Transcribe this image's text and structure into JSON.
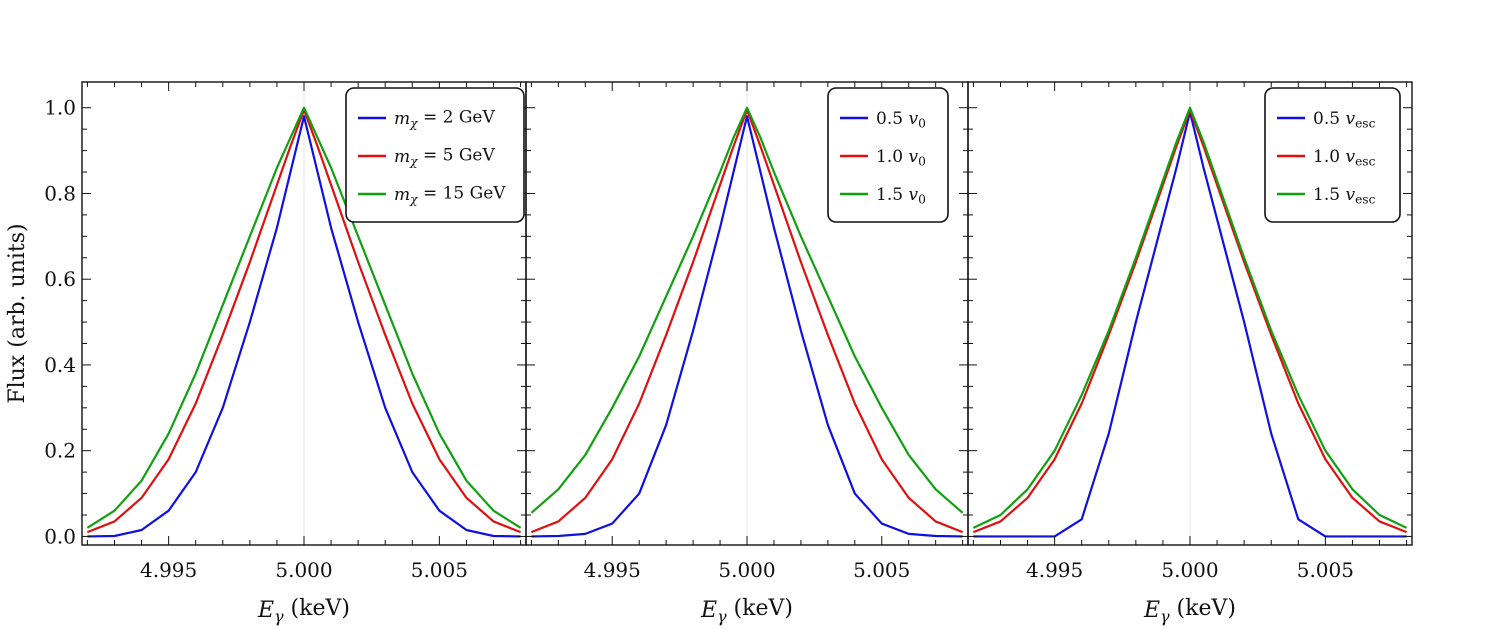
{
  "chart_data": [
    {
      "type": "line",
      "panel": "mass",
      "xlabel_sym": "E",
      "xlabel_sub": "γ",
      "xlabel_unit": " (keV)",
      "ylabel": "Flux (arb. units)",
      "xlim": [
        4.9918,
        5.0082
      ],
      "ylim": [
        -0.02,
        1.06
      ],
      "xticks": [
        "4.995",
        "5.000",
        "5.005"
      ],
      "xtick_values": [
        4.995,
        5.0,
        5.005
      ],
      "yticks": [
        "0.0",
        "0.2",
        "0.4",
        "0.6",
        "0.8",
        "1.0"
      ],
      "ytick_values": [
        0.0,
        0.2,
        0.4,
        0.6,
        0.8,
        1.0
      ],
      "legend_position": "top-right",
      "series": [
        {
          "name": "m_χ = 2 GeV",
          "sym": "m",
          "sub": "χ",
          "rest": " = 2 GeV",
          "color": "#1010e0",
          "x": [
            4.992,
            4.993,
            4.994,
            4.995,
            4.996,
            4.997,
            4.998,
            4.999,
            4.9995,
            5.0,
            5.0005,
            5.001,
            5.002,
            5.003,
            5.004,
            5.005,
            5.006,
            5.007,
            5.008
          ],
          "y": [
            0.0,
            0.001,
            0.015,
            0.06,
            0.15,
            0.3,
            0.5,
            0.72,
            0.85,
            0.98,
            0.85,
            0.72,
            0.5,
            0.3,
            0.15,
            0.06,
            0.015,
            0.001,
            0.0
          ]
        },
        {
          "name": "m_χ = 5 GeV",
          "sym": "m",
          "sub": "χ",
          "rest": " = 5 GeV",
          "color": "#e01010",
          "x": [
            4.992,
            4.993,
            4.994,
            4.995,
            4.996,
            4.997,
            4.998,
            4.999,
            4.9995,
            5.0,
            5.0005,
            5.001,
            5.002,
            5.003,
            5.004,
            5.005,
            5.006,
            5.007,
            5.008
          ],
          "y": [
            0.01,
            0.035,
            0.09,
            0.18,
            0.31,
            0.47,
            0.64,
            0.82,
            0.91,
            0.995,
            0.91,
            0.82,
            0.64,
            0.47,
            0.31,
            0.18,
            0.09,
            0.035,
            0.01
          ]
        },
        {
          "name": "m_χ = 15 GeV",
          "sym": "m",
          "sub": "χ",
          "rest": " = 15 GeV",
          "color": "#10a010",
          "x": [
            4.992,
            4.993,
            4.994,
            4.995,
            4.996,
            4.997,
            4.998,
            4.999,
            4.9995,
            5.0,
            5.0005,
            5.001,
            5.002,
            5.003,
            5.004,
            5.005,
            5.006,
            5.007,
            5.008
          ],
          "y": [
            0.02,
            0.06,
            0.13,
            0.24,
            0.38,
            0.54,
            0.7,
            0.86,
            0.93,
            1.0,
            0.93,
            0.86,
            0.7,
            0.54,
            0.38,
            0.24,
            0.13,
            0.06,
            0.02
          ]
        }
      ]
    },
    {
      "type": "line",
      "panel": "v0",
      "xlabel_sym": "E",
      "xlabel_sub": "γ",
      "xlabel_unit": " (keV)",
      "xlim": [
        4.9918,
        5.0082
      ],
      "ylim": [
        -0.02,
        1.06
      ],
      "xticks": [
        "4.995",
        "5.000",
        "5.005"
      ],
      "xtick_values": [
        4.995,
        5.0,
        5.005
      ],
      "legend_position": "top-right",
      "series": [
        {
          "name": "0.5 v_0",
          "sym": "0.5 ",
          "var": "v",
          "sub": "0",
          "color": "#1010e0",
          "x": [
            4.992,
            4.993,
            4.994,
            4.995,
            4.996,
            4.997,
            4.998,
            4.999,
            4.9995,
            5.0,
            5.0005,
            5.001,
            5.002,
            5.003,
            5.004,
            5.005,
            5.006,
            5.007,
            5.008
          ],
          "y": [
            0.0,
            0.001,
            0.006,
            0.03,
            0.1,
            0.26,
            0.48,
            0.72,
            0.85,
            0.98,
            0.85,
            0.72,
            0.48,
            0.26,
            0.1,
            0.03,
            0.006,
            0.001,
            0.0
          ]
        },
        {
          "name": "1.0 v_0",
          "sym": "1.0 ",
          "var": "v",
          "sub": "0",
          "color": "#e01010",
          "x": [
            4.992,
            4.993,
            4.994,
            4.995,
            4.996,
            4.997,
            4.998,
            4.999,
            4.9995,
            5.0,
            5.0005,
            5.001,
            5.002,
            5.003,
            5.004,
            5.005,
            5.006,
            5.007,
            5.008
          ],
          "y": [
            0.01,
            0.035,
            0.09,
            0.18,
            0.31,
            0.47,
            0.64,
            0.82,
            0.91,
            0.995,
            0.91,
            0.82,
            0.64,
            0.47,
            0.31,
            0.18,
            0.09,
            0.035,
            0.01
          ]
        },
        {
          "name": "1.5 v_0",
          "sym": "1.5 ",
          "var": "v",
          "sub": "0",
          "color": "#10a010",
          "x": [
            4.992,
            4.993,
            4.994,
            4.995,
            4.996,
            4.997,
            4.998,
            4.999,
            4.9995,
            5.0,
            5.0005,
            5.001,
            5.002,
            5.003,
            5.004,
            5.005,
            5.006,
            5.007,
            5.008
          ],
          "y": [
            0.055,
            0.11,
            0.19,
            0.3,
            0.42,
            0.56,
            0.7,
            0.85,
            0.93,
            1.0,
            0.93,
            0.85,
            0.7,
            0.56,
            0.42,
            0.3,
            0.19,
            0.11,
            0.055
          ]
        }
      ]
    },
    {
      "type": "line",
      "panel": "vesc",
      "xlabel_sym": "E",
      "xlabel_sub": "γ",
      "xlabel_unit": " (keV)",
      "xlim": [
        4.9918,
        5.0082
      ],
      "ylim": [
        -0.02,
        1.06
      ],
      "xticks": [
        "4.995",
        "5.000",
        "5.005"
      ],
      "xtick_values": [
        4.995,
        5.0,
        5.005
      ],
      "legend_position": "top-right",
      "series": [
        {
          "name": "0.5 v_esc",
          "sym": "0.5 ",
          "var": "v",
          "sub": "esc",
          "color": "#1010e0",
          "x": [
            4.992,
            4.993,
            4.994,
            4.995,
            4.996,
            4.997,
            4.998,
            4.999,
            4.9995,
            5.0,
            5.0005,
            5.001,
            5.002,
            5.003,
            5.004,
            5.005,
            5.006,
            5.007,
            5.008
          ],
          "y": [
            0.0,
            0.0,
            0.0,
            0.0,
            0.04,
            0.24,
            0.5,
            0.74,
            0.86,
            0.99,
            0.86,
            0.74,
            0.5,
            0.24,
            0.04,
            0.0,
            0.0,
            0.0,
            0.0
          ]
        },
        {
          "name": "1.0 v_esc",
          "sym": "1.0 ",
          "var": "v",
          "sub": "esc",
          "color": "#e01010",
          "x": [
            4.992,
            4.993,
            4.994,
            4.995,
            4.996,
            4.997,
            4.998,
            4.999,
            4.9995,
            5.0,
            5.0005,
            5.001,
            5.002,
            5.003,
            5.004,
            5.005,
            5.006,
            5.007,
            5.008
          ],
          "y": [
            0.01,
            0.035,
            0.09,
            0.18,
            0.31,
            0.47,
            0.64,
            0.82,
            0.91,
            0.995,
            0.91,
            0.82,
            0.64,
            0.47,
            0.31,
            0.18,
            0.09,
            0.035,
            0.01
          ]
        },
        {
          "name": "1.5 v_esc",
          "sym": "1.5 ",
          "var": "v",
          "sub": "esc",
          "color": "#10a010",
          "x": [
            4.992,
            4.993,
            4.994,
            4.995,
            4.996,
            4.997,
            4.998,
            4.999,
            4.9995,
            5.0,
            5.0005,
            5.001,
            5.002,
            5.003,
            5.004,
            5.005,
            5.006,
            5.007,
            5.008
          ],
          "y": [
            0.02,
            0.05,
            0.11,
            0.2,
            0.33,
            0.48,
            0.65,
            0.83,
            0.92,
            1.0,
            0.92,
            0.83,
            0.65,
            0.48,
            0.33,
            0.2,
            0.11,
            0.05,
            0.02
          ]
        }
      ]
    }
  ]
}
